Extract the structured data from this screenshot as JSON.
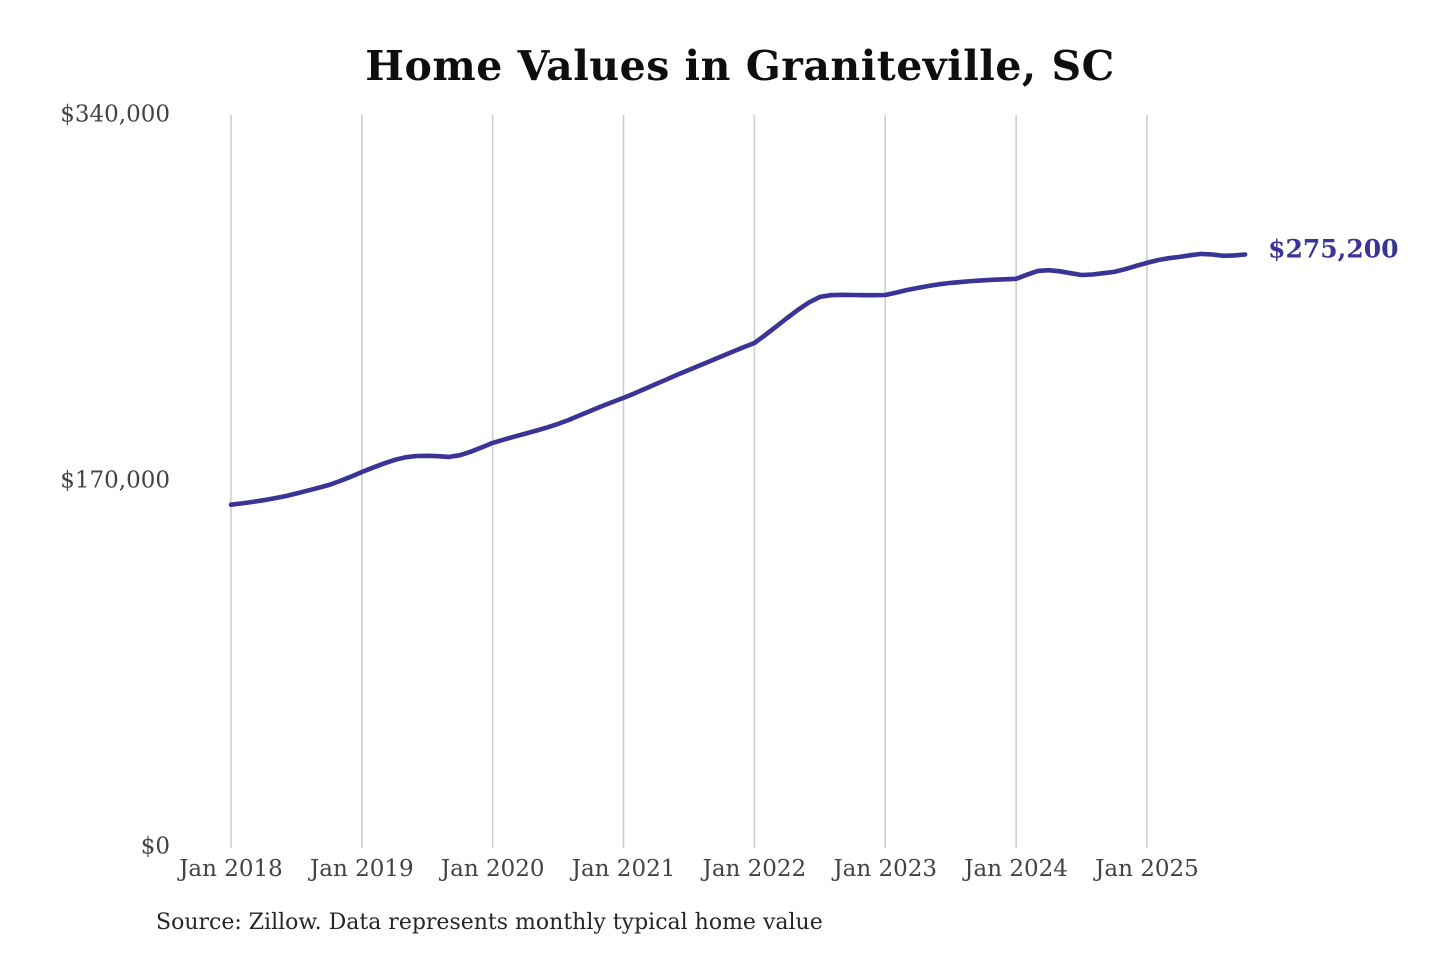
{
  "title": "Home Values in Graniteville, SC",
  "source_note": "Source: Zillow. Data represents monthly typical home value",
  "current_value_label": "$275,200",
  "colors": {
    "line": "#3a3496",
    "value_label": "#3a3496",
    "gridline": "#cbcbcb",
    "axis_text": "#434343",
    "title_text": "#0e0e0e",
    "source_text": "#262626",
    "background": "#ffffff"
  },
  "y_axis": {
    "ticks": [
      {
        "label": "$340,000",
        "value": 340000
      },
      {
        "label": "$170,000",
        "value": 170000
      },
      {
        "label": "$0",
        "value": 0
      }
    ]
  },
  "x_axis": {
    "ticks": [
      "Jan 2018",
      "Jan 2019",
      "Jan 2020",
      "Jan 2021",
      "Jan 2022",
      "Jan 2023",
      "Jan 2024",
      "Jan 2025"
    ]
  },
  "chart_data": {
    "type": "line",
    "title": "Home Values in Graniteville, SC",
    "series_name": "Monthly typical home value (Zillow)",
    "xlabel": "",
    "ylabel": "",
    "ylim": [
      0,
      340000
    ],
    "grid": "vertical-only",
    "legend": "none",
    "final_value_label": "$275,200",
    "x": [
      "Jan 2018",
      "Feb 2018",
      "Mar 2018",
      "Apr 2018",
      "May 2018",
      "Jun 2018",
      "Jul 2018",
      "Aug 2018",
      "Sep 2018",
      "Oct 2018",
      "Nov 2018",
      "Dec 2018",
      "Jan 2019",
      "Feb 2019",
      "Mar 2019",
      "Apr 2019",
      "May 2019",
      "Jun 2019",
      "Jul 2019",
      "Aug 2019",
      "Sep 2019",
      "Oct 2019",
      "Nov 2019",
      "Dec 2019",
      "Jan 2020",
      "Feb 2020",
      "Mar 2020",
      "Apr 2020",
      "May 2020",
      "Jun 2020",
      "Jul 2020",
      "Aug 2020",
      "Sep 2020",
      "Oct 2020",
      "Nov 2020",
      "Dec 2020",
      "Jan 2021",
      "Feb 2021",
      "Mar 2021",
      "Apr 2021",
      "May 2021",
      "Jun 2021",
      "Jul 2021",
      "Aug 2021",
      "Sep 2021",
      "Oct 2021",
      "Nov 2021",
      "Dec 2021",
      "Jan 2022",
      "Feb 2022",
      "Mar 2022",
      "Apr 2022",
      "May 2022",
      "Jun 2022",
      "Jul 2022",
      "Aug 2022",
      "Sep 2022",
      "Oct 2022",
      "Nov 2022",
      "Dec 2022",
      "Jan 2023",
      "Feb 2023",
      "Mar 2023",
      "Apr 2023",
      "May 2023",
      "Jun 2023",
      "Jul 2023",
      "Aug 2023",
      "Sep 2023",
      "Oct 2023",
      "Nov 2023",
      "Dec 2023",
      "Jan 2024",
      "Feb 2024",
      "Mar 2024",
      "Apr 2024",
      "May 2024",
      "Jun 2024",
      "Jul 2024",
      "Aug 2024",
      "Sep 2024",
      "Oct 2024",
      "Nov 2024",
      "Dec 2024",
      "Jan 2025",
      "Feb 2025",
      "Mar 2025",
      "Apr 2025",
      "May 2025",
      "Jun 2025",
      "Jul 2025",
      "Aug 2025",
      "Sep 2025",
      "Oct 2025"
    ],
    "values": [
      159000,
      159600,
      160300,
      161100,
      162000,
      163000,
      164200,
      165500,
      166800,
      168200,
      170000,
      172000,
      174200,
      176200,
      178100,
      179800,
      181000,
      181600,
      181700,
      181500,
      181200,
      182000,
      183600,
      185600,
      187700,
      189200,
      190600,
      192000,
      193400,
      194900,
      196500,
      198400,
      200500,
      202600,
      204700,
      206700,
      208600,
      210700,
      212900,
      215100,
      217300,
      219500,
      221600,
      223700,
      225800,
      227900,
      230000,
      232100,
      234100,
      237800,
      241700,
      245700,
      249500,
      252900,
      255500,
      256300,
      256500,
      256400,
      256300,
      256300,
      256400,
      257500,
      258700,
      259700,
      260600,
      261400,
      262000,
      262500,
      262900,
      263200,
      263500,
      263700,
      263900,
      265800,
      267600,
      267900,
      267400,
      266500,
      265700,
      265900,
      266500,
      267100,
      268400,
      269900,
      271300,
      272600,
      273500,
      274100,
      274900,
      275500,
      275200,
      274600,
      274800,
      275200
    ]
  }
}
